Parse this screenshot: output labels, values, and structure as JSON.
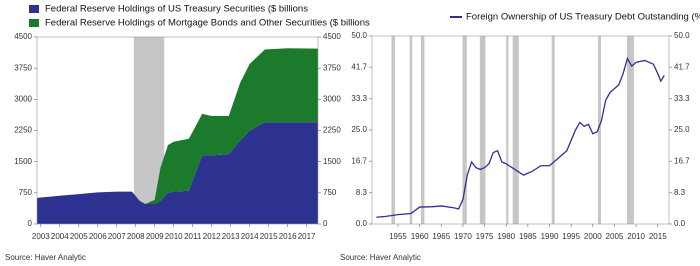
{
  "chart_data": [
    {
      "type": "area",
      "legend": "top-left",
      "source": "Source:  Haver Analytic",
      "x": [
        2002.8,
        2004,
        2005,
        2006,
        2007,
        2007.8,
        2008.2,
        2008.5,
        2009.0,
        2009.3,
        2009.7,
        2010.0,
        2010.8,
        2011.5,
        2012.0,
        2012.9,
        2013.5,
        2014.0,
        2014.8,
        2016.0,
        2017.6
      ],
      "series": [
        {
          "name": "Federal Reserve Holdings of US Treasury Securities ($ billions",
          "color": "#2d3190",
          "values": [
            630,
            680,
            720,
            760,
            780,
            780,
            560,
            480,
            480,
            550,
            750,
            780,
            800,
            1650,
            1650,
            1680,
            2000,
            2250,
            2450,
            2450,
            2450
          ]
        },
        {
          "name": "Federal Reserve Holdings of Mortgage Bonds and Other Securities ($ billions",
          "color": "#1b7a2c",
          "values": [
            0,
            0,
            0,
            0,
            0,
            0,
            0,
            0,
            100,
            800,
            1150,
            1200,
            1250,
            1000,
            950,
            920,
            1400,
            1600,
            1750,
            1780,
            1770
          ]
        }
      ],
      "shaded": [
        [
          2007.9,
          2009.5
        ]
      ],
      "shade_color": "#c6c6c6",
      "xlim": [
        2002.8,
        2017.6
      ],
      "xticks": [
        2003,
        2004,
        2005,
        2006,
        2007,
        2008,
        2009,
        2010,
        2011,
        2012,
        2013,
        2014,
        2015,
        2016,
        2017
      ],
      "ylim": [
        0,
        4500
      ],
      "yticks": [
        0,
        750,
        1500,
        2250,
        3000,
        3750,
        4500
      ],
      "mirror_y": true
    },
    {
      "type": "line",
      "legend": "top",
      "source": "Source:  Haver Analytic",
      "x": [
        1950,
        1952,
        1955,
        1958,
        1960,
        1963,
        1965,
        1968,
        1969,
        1970,
        1971,
        1972,
        1973,
        1974,
        1975,
        1976,
        1977,
        1978,
        1979,
        1980,
        1982,
        1984,
        1986,
        1988,
        1990,
        1992,
        1994,
        1996,
        1997,
        1998,
        1999,
        2000,
        2001,
        2002,
        2003,
        2004,
        2006,
        2007,
        2008,
        2009,
        2010,
        2012,
        2014,
        2015,
        2015.7,
        2016.5
      ],
      "series": [
        {
          "name": "Foreign Ownership of US Treasury Debt  Outstanding (%",
          "color": "#2d3190",
          "values": [
            1.8,
            2.0,
            2.5,
            2.8,
            4.5,
            4.6,
            4.8,
            4.3,
            4.0,
            6.5,
            13,
            16.5,
            15,
            14.5,
            15,
            16,
            19,
            19.5,
            16.5,
            16,
            14.5,
            13,
            14,
            15.5,
            15.5,
            17.5,
            19.5,
            25,
            27,
            26,
            26.5,
            24,
            24.5,
            27.5,
            33,
            35,
            37,
            40,
            44,
            42,
            43,
            43.5,
            42.5,
            40,
            38,
            39.5
          ]
        }
      ],
      "shaded": [
        [
          1953.5,
          1954.3
        ],
        [
          1957.7,
          1958.3
        ],
        [
          1960.3,
          1961.1
        ],
        [
          1969.9,
          1970.9
        ],
        [
          1973.9,
          1975.2
        ],
        [
          1980.0,
          1980.5
        ],
        [
          1981.5,
          1982.9
        ],
        [
          1990.5,
          1991.2
        ],
        [
          2001.2,
          2001.9
        ],
        [
          2007.9,
          2009.5
        ]
      ],
      "shade_color": "#c6c6c6",
      "xlim": [
        1949,
        2017.6
      ],
      "xticks": [
        1955,
        1960,
        1965,
        1970,
        1975,
        1980,
        1985,
        1990,
        1995,
        2000,
        2005,
        2010,
        2015
      ],
      "ylim": [
        0,
        50
      ],
      "yticks": [
        {
          "value": 0,
          "label": "0.0"
        },
        8.3,
        16.7,
        {
          "value": 25,
          "label": "25.0"
        },
        33.3,
        41.7,
        {
          "value": 50,
          "label": "50.0"
        }
      ],
      "mirror_y": true
    }
  ]
}
